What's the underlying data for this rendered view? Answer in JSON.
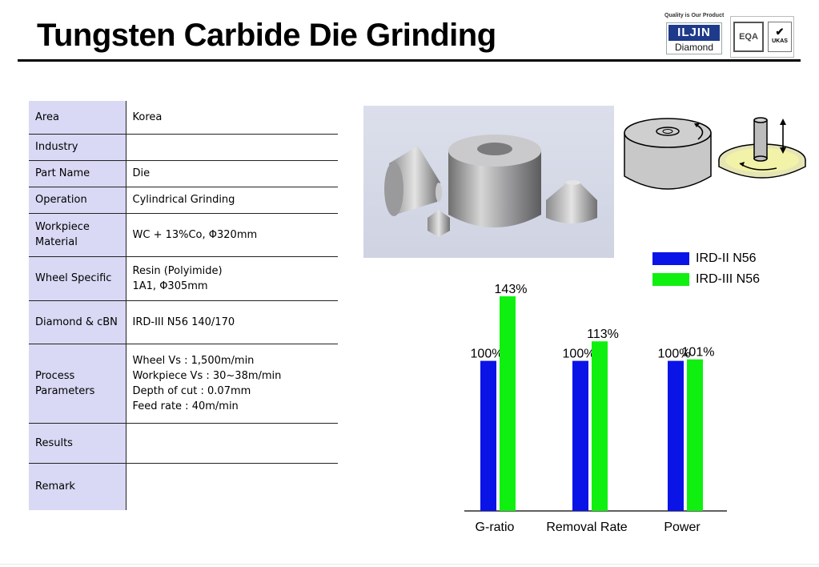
{
  "header": {
    "title": "Tungsten Carbide Die Grinding"
  },
  "logo": {
    "tagline": "Quality is Our Product",
    "brand": "ILJIN",
    "sub": "Diamond",
    "cert_a": "EQA",
    "cert_b": "UKAS"
  },
  "spec": {
    "rows": [
      {
        "label": "Area",
        "value": [
          "Korea"
        ]
      },
      {
        "label": "Industry",
        "value": [
          ""
        ]
      },
      {
        "label": "Part Name",
        "value": [
          "Die"
        ]
      },
      {
        "label": "Operation",
        "value": [
          "Cylindrical Grinding"
        ]
      },
      {
        "label": "Workpiece Material",
        "value": [
          "WC + 13%Co, Φ320mm"
        ]
      },
      {
        "label": "Wheel Specific",
        "value": [
          "Resin (Polyimide)",
          "1A1, Φ305mm"
        ]
      },
      {
        "label": "Diamond & cBN",
        "value": [
          "IRD-III N56 140/170"
        ]
      },
      {
        "label": "Process Parameters",
        "value": [
          "Wheel  Vs : 1,500m/min",
          "Workpiece Vs : 30~38m/min",
          "Depth of cut : 0.07mm",
          "Feed rate : 40m/min"
        ]
      },
      {
        "label": "Results",
        "value": [
          ""
        ]
      },
      {
        "label": "Remark",
        "value": [
          ""
        ]
      }
    ]
  },
  "chart_data": {
    "type": "bar",
    "categories": [
      "G-ratio",
      "Removal Rate",
      "Power"
    ],
    "series": [
      {
        "name": "IRD-II N56",
        "color": "#0a14e6",
        "values": [
          100,
          100,
          100
        ],
        "labels": [
          "100%",
          "100%",
          "100%"
        ]
      },
      {
        "name": "IRD-III N56",
        "color": "#10f010",
        "values": [
          143,
          113,
          101
        ],
        "labels": [
          "143%",
          "113%",
          "101%"
        ]
      }
    ],
    "ylim": [
      0,
      150
    ],
    "grid": false,
    "legend": "top-right"
  }
}
